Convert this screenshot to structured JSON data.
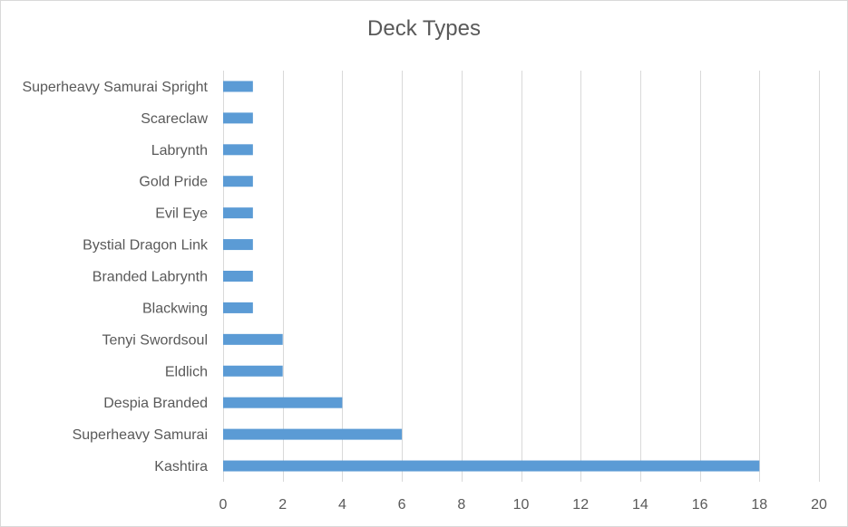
{
  "chart_data": {
    "type": "bar",
    "orientation": "horizontal",
    "title": "Deck Types",
    "xlabel": "",
    "ylabel": "",
    "categories": [
      "Superheavy Samurai Spright",
      "Scareclaw",
      "Labrynth",
      "Gold Pride",
      "Evil Eye",
      "Bystial Dragon Link",
      "Branded Labrynth",
      "Blackwing",
      "Tenyi Swordsoul",
      "Eldlich",
      "Despia Branded",
      "Superheavy Samurai",
      "Kashtira"
    ],
    "values": [
      1,
      1,
      1,
      1,
      1,
      1,
      1,
      1,
      2,
      2,
      4,
      6,
      18
    ],
    "xlim": [
      0,
      20
    ],
    "xticks": [
      0,
      2,
      4,
      6,
      8,
      10,
      12,
      14,
      16,
      18,
      20
    ],
    "grid": "vertical",
    "legend": "none",
    "colors": {
      "bar": "#5B9BD5",
      "grid": "#D9D9D9",
      "text": "#595959",
      "border": "#D9D9D9"
    }
  }
}
